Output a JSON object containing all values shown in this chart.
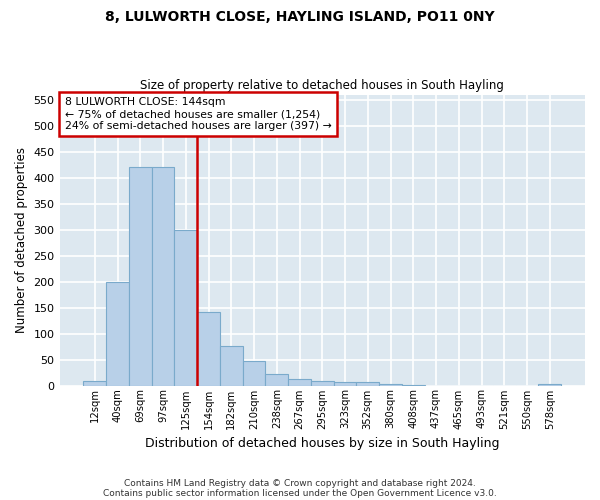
{
  "title": "8, LULWORTH CLOSE, HAYLING ISLAND, PO11 0NY",
  "subtitle": "Size of property relative to detached houses in South Hayling",
  "xlabel": "Distribution of detached houses by size in South Hayling",
  "ylabel": "Number of detached properties",
  "footnote1": "Contains HM Land Registry data © Crown copyright and database right 2024.",
  "footnote2": "Contains public sector information licensed under the Open Government Licence v3.0.",
  "categories": [
    "12sqm",
    "40sqm",
    "69sqm",
    "97sqm",
    "125sqm",
    "154sqm",
    "182sqm",
    "210sqm",
    "238sqm",
    "267sqm",
    "295sqm",
    "323sqm",
    "352sqm",
    "380sqm",
    "408sqm",
    "437sqm",
    "465sqm",
    "493sqm",
    "521sqm",
    "550sqm",
    "578sqm"
  ],
  "values": [
    8,
    200,
    420,
    420,
    300,
    142,
    77,
    48,
    23,
    12,
    8,
    6,
    7,
    3,
    1,
    0,
    0,
    0,
    0,
    0,
    3
  ],
  "bar_color": "#b8d0e8",
  "bar_edge_color": "#7aaacb",
  "ylim": [
    0,
    560
  ],
  "yticks": [
    0,
    50,
    100,
    150,
    200,
    250,
    300,
    350,
    400,
    450,
    500,
    550
  ],
  "ann_line1": "8 LULWORTH CLOSE: 144sqm",
  "ann_line2": "← 75% of detached houses are smaller (1,254)",
  "ann_line3": "24% of semi-detached houses are larger (397) →",
  "vline_color": "#cc0000",
  "fig_background": "#ffffff",
  "plot_background": "#dde8f0",
  "grid_color": "#ffffff"
}
